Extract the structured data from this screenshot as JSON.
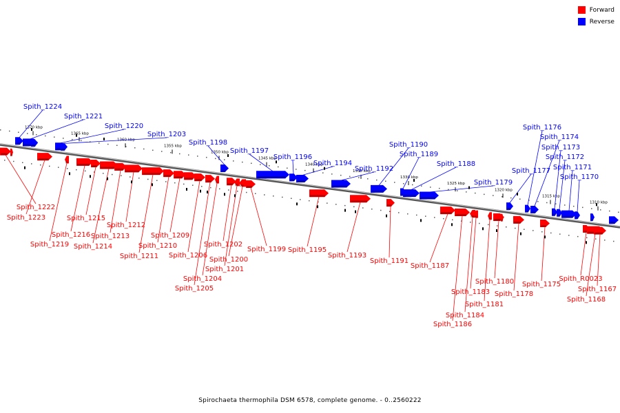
{
  "colors": {
    "forward": "#ff0000",
    "reverse": "#0000ff",
    "backbone": "#888888"
  },
  "legend": {
    "forward_label": "Forward",
    "reverse_label": "Reverse"
  },
  "caption": "Spirochaeta thermophila DSM 6578, complete genome. - 0..2560222",
  "ticks": [
    {
      "label": "1370 kbp"
    },
    {
      "label": "1365 kbp"
    },
    {
      "label": "1360 kbp"
    },
    {
      "label": "1355 kbp"
    },
    {
      "label": "1350 kbp"
    },
    {
      "label": "1345 kbp"
    },
    {
      "label": "1340 kbp"
    },
    {
      "label": "1335 kbp"
    },
    {
      "label": "1330 kbp"
    },
    {
      "label": "1325 kbp"
    },
    {
      "label": "1320 kbp"
    },
    {
      "label": "1315 kbp"
    },
    {
      "label": "1310 kbp"
    }
  ],
  "genes_reverse": [
    {
      "name": "Spith_1224"
    },
    {
      "name": "Spith_1221"
    },
    {
      "name": "Spith_1220"
    },
    {
      "name": "Spith_1203"
    },
    {
      "name": "Spith_1198"
    },
    {
      "name": "Spith_1197"
    },
    {
      "name": "Spith_1196"
    },
    {
      "name": "Spith_1194"
    },
    {
      "name": "Spith_1192"
    },
    {
      "name": "Spith_1190"
    },
    {
      "name": "Spith_1189"
    },
    {
      "name": "Spith_1188"
    },
    {
      "name": "Spith_1179"
    },
    {
      "name": "Spith_1177"
    },
    {
      "name": "Spith_1176"
    },
    {
      "name": "Spith_1174"
    },
    {
      "name": "Spith_1173"
    },
    {
      "name": "Spith_1172"
    },
    {
      "name": "Spith_1171"
    },
    {
      "name": "Spith_1170"
    }
  ],
  "genes_forward": [
    {
      "name": "Spith_1222"
    },
    {
      "name": "Spith_1223"
    },
    {
      "name": "Spith_1219"
    },
    {
      "name": "Spith_1216"
    },
    {
      "name": "Spith_1215"
    },
    {
      "name": "Spith_1214"
    },
    {
      "name": "Spith_1213"
    },
    {
      "name": "Spith_1212"
    },
    {
      "name": "Spith_1211"
    },
    {
      "name": "Spith_1210"
    },
    {
      "name": "Spith_1209"
    },
    {
      "name": "Spith_1206"
    },
    {
      "name": "Spith_1205"
    },
    {
      "name": "Spith_1204"
    },
    {
      "name": "Spith_1202"
    },
    {
      "name": "Spith_1201"
    },
    {
      "name": "Spith_1200"
    },
    {
      "name": "Spith_1199"
    },
    {
      "name": "Spith_1195"
    },
    {
      "name": "Spith_1193"
    },
    {
      "name": "Spith_1191"
    },
    {
      "name": "Spith_1187"
    },
    {
      "name": "Spith_1186"
    },
    {
      "name": "Spith_1184"
    },
    {
      "name": "Spith_1183"
    },
    {
      "name": "Spith_1181"
    },
    {
      "name": "Spith_1180"
    },
    {
      "name": "Spith_1178"
    },
    {
      "name": "Spith_1175"
    },
    {
      "name": "Spith_R0023"
    },
    {
      "name": "Spith_1168"
    },
    {
      "name": "Spith_1167"
    }
  ]
}
